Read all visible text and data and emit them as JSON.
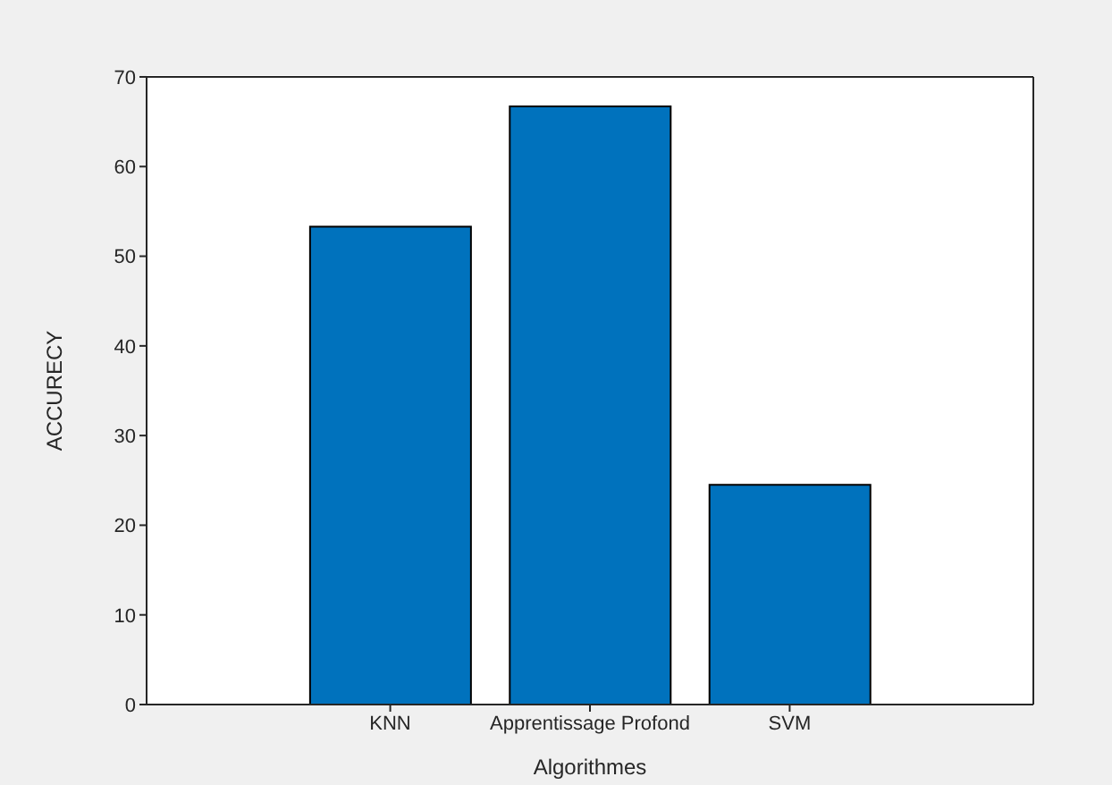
{
  "chart_data": {
    "type": "bar",
    "xlabel": "Algorithmes",
    "ylabel": "ACCURECY",
    "categories": [
      "KNN",
      "Apprentissage Profond",
      "SVM"
    ],
    "values": [
      53.3,
      66.7,
      24.5
    ],
    "color": "#0072bd",
    "ylim": [
      0,
      70
    ],
    "yticks": [
      0,
      10,
      20,
      30,
      40,
      50,
      60,
      70
    ]
  }
}
